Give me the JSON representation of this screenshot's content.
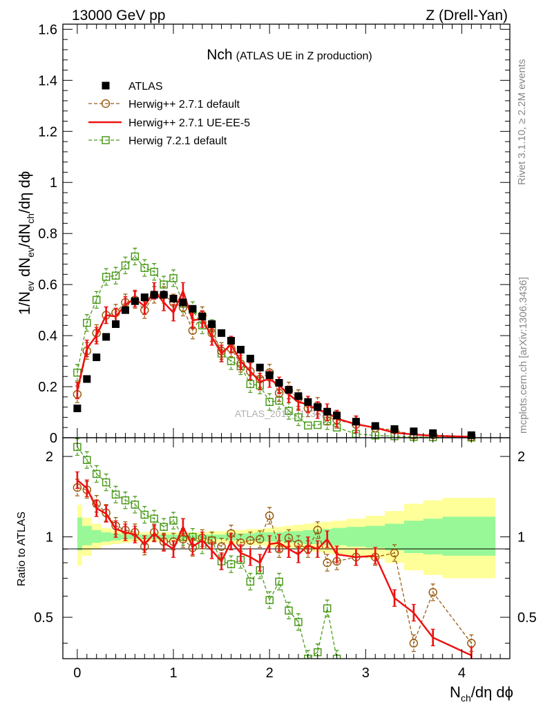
{
  "header": {
    "left": "13000 GeV pp",
    "right": "Z (Drell-Yan)"
  },
  "side_text": {
    "rivet": "Rivet 3.1.10, ≥ 2.2M events",
    "mcplots": "mcplots.cern.ch [arXiv:1306.3436]"
  },
  "chart_data": {
    "type": "scatter",
    "title_main": "Nch",
    "title_sub": "(ATLAS UE in Z production)",
    "watermark": "ATLAS_2019_I1736531",
    "xlabel_main": "N",
    "xlabel_sub": "ch",
    "xlabel_rest": "/dη dϕ",
    "ylabel_top": "1/N_ev dN_ev/dN_ch/dη dϕ",
    "ylabel_bottom": "Ratio to ATLAS",
    "xlim": [
      -0.15,
      4.5
    ],
    "ylim_top": [
      0,
      1.62
    ],
    "ylim_bottom": [
      0.35,
      2.35
    ],
    "ratio_scale": "log",
    "x_ticks": [
      "0",
      "1",
      "2",
      "3",
      "4"
    ],
    "y_ticks_top": [
      "0",
      "0.2",
      "0.4",
      "0.6",
      "0.8",
      "1",
      "1.2",
      "1.4",
      "1.6"
    ],
    "y_ticks_bottom": [
      "0.5",
      "1",
      "2"
    ],
    "legend_position": "top-left",
    "series": [
      {
        "name": "ATLAS",
        "style": "data",
        "color": "#000000",
        "x": [
          0,
          0.1,
          0.2,
          0.3,
          0.4,
          0.5,
          0.6,
          0.7,
          0.8,
          0.9,
          1.0,
          1.1,
          1.2,
          1.3,
          1.4,
          1.5,
          1.6,
          1.7,
          1.8,
          1.9,
          2.0,
          2.1,
          2.2,
          2.3,
          2.4,
          2.5,
          2.6,
          2.7,
          2.9,
          3.1,
          3.3,
          3.5,
          3.7,
          4.1
        ],
        "y": [
          0.115,
          0.23,
          0.315,
          0.395,
          0.445,
          0.5,
          0.535,
          0.55,
          0.56,
          0.56,
          0.545,
          0.53,
          0.505,
          0.475,
          0.445,
          0.41,
          0.38,
          0.345,
          0.31,
          0.275,
          0.245,
          0.215,
          0.188,
          0.163,
          0.14,
          0.12,
          0.102,
          0.087,
          0.063,
          0.046,
          0.034,
          0.025,
          0.018,
          0.01
        ]
      },
      {
        "name": "Herwig++ 2.7.1 default",
        "style": "dashed-circle",
        "color": "#9a5b10",
        "x": [
          0,
          0.1,
          0.2,
          0.3,
          0.4,
          0.5,
          0.6,
          0.7,
          0.8,
          0.9,
          1.0,
          1.1,
          1.2,
          1.3,
          1.4,
          1.5,
          1.6,
          1.7,
          1.8,
          1.9,
          2.0,
          2.1,
          2.2,
          2.3,
          2.4,
          2.5,
          2.6,
          2.7,
          2.9,
          3.1,
          3.3,
          3.5,
          3.7,
          4.1
        ],
        "y": [
          0.17,
          0.34,
          0.41,
          0.48,
          0.49,
          0.53,
          0.54,
          0.5,
          0.56,
          0.56,
          0.53,
          0.51,
          0.42,
          0.48,
          0.41,
          0.34,
          0.35,
          0.29,
          0.26,
          0.23,
          0.255,
          0.175,
          0.185,
          0.155,
          0.115,
          0.125,
          0.082,
          0.07,
          0.052,
          0.038,
          0.03,
          0.01,
          0.011,
          0.004
        ]
      },
      {
        "name": "Herwig++ 2.7.1 UE-EE-5",
        "style": "solid",
        "color": "#ee1111",
        "x": [
          0,
          0.1,
          0.2,
          0.3,
          0.4,
          0.5,
          0.6,
          0.7,
          0.8,
          0.9,
          1.0,
          1.1,
          1.2,
          1.3,
          1.4,
          1.5,
          1.6,
          1.7,
          1.8,
          1.9,
          2.0,
          2.1,
          2.2,
          2.3,
          2.4,
          2.5,
          2.6,
          2.7,
          2.9,
          3.1,
          3.3,
          3.5,
          3.7,
          4.1
        ],
        "y": [
          0.185,
          0.35,
          0.4,
          0.48,
          0.475,
          0.52,
          0.545,
          0.515,
          0.575,
          0.53,
          0.49,
          0.575,
          0.46,
          0.465,
          0.395,
          0.33,
          0.365,
          0.3,
          0.26,
          0.22,
          0.23,
          0.205,
          0.17,
          0.14,
          0.13,
          0.108,
          0.1,
          0.075,
          0.053,
          0.039,
          0.02,
          0.013,
          0.0075,
          0.0036
        ]
      },
      {
        "name": "Herwig 7.2.1 default",
        "style": "dashed-square",
        "color": "#4a9a1a",
        "x": [
          0,
          0.1,
          0.2,
          0.3,
          0.4,
          0.5,
          0.6,
          0.7,
          0.8,
          0.9,
          1.0,
          1.1,
          1.2,
          1.3,
          1.4,
          1.5,
          1.6,
          1.7,
          1.8,
          1.9,
          2.0,
          2.1,
          2.2,
          2.3,
          2.4,
          2.5,
          2.6,
          2.7,
          2.9,
          3.1,
          3.3,
          3.5,
          3.7,
          4.1
        ],
        "y": [
          0.255,
          0.45,
          0.54,
          0.63,
          0.635,
          0.675,
          0.71,
          0.665,
          0.65,
          0.6,
          0.625,
          0.525,
          0.5,
          0.44,
          0.43,
          0.33,
          0.3,
          0.28,
          0.21,
          0.205,
          0.14,
          0.145,
          0.105,
          0.08,
          0.048,
          0.05,
          0.065,
          0.04,
          0.015,
          0.009,
          0.006,
          0.003,
          0.002,
          0.0008
        ]
      }
    ],
    "ratio_series": [
      {
        "name": "Herwig++ 2.7.1 default",
        "values": [
          1.53,
          1.5,
          1.33,
          1.23,
          1.1,
          1.06,
          1.04,
          0.92,
          1.04,
          0.96,
          0.96,
          0.98,
          0.91,
          0.99,
          0.97,
          0.92,
          1.03,
          0.95,
          0.97,
          0.98,
          1.2,
          0.9,
          0.99,
          0.94,
          0.9,
          1.06,
          0.8,
          0.81,
          0.84,
          0.84,
          0.87,
          0.4,
          0.62,
          0.4
        ]
      },
      {
        "name": "Herwig++ 2.7.1 UE-EE-5",
        "values": [
          1.63,
          1.52,
          1.28,
          1.22,
          1.07,
          1.04,
          1.02,
          0.94,
          1.03,
          0.95,
          0.9,
          1.09,
          0.92,
          0.97,
          0.89,
          0.81,
          0.96,
          0.87,
          0.84,
          0.8,
          0.94,
          0.95,
          0.9,
          0.86,
          0.93,
          0.9,
          0.98,
          0.86,
          0.84,
          0.85,
          0.59,
          0.52,
          0.42,
          0.36
        ]
      },
      {
        "name": "Herwig 7.2.1 default",
        "values": [
          2.17,
          1.94,
          1.72,
          1.6,
          1.44,
          1.37,
          1.32,
          1.21,
          1.17,
          1.09,
          1.15,
          1.0,
          1.0,
          0.93,
          0.97,
          0.81,
          0.79,
          0.82,
          0.68,
          0.75,
          0.58,
          0.68,
          0.53,
          0.48,
          0.35,
          0.37,
          0.54,
          0.35
        ]
      }
    ],
    "uncertainty_bands": {
      "edges": [
        0,
        0.05,
        0.15,
        0.25,
        0.35,
        0.45,
        0.55,
        0.65,
        0.75,
        0.85,
        0.95,
        1.05,
        1.15,
        1.25,
        1.35,
        1.45,
        1.55,
        1.65,
        1.75,
        1.85,
        1.95,
        2.05,
        2.15,
        2.25,
        2.35,
        2.45,
        2.55,
        2.65,
        2.8,
        3.0,
        3.2,
        3.4,
        3.6,
        3.8,
        4.35
      ],
      "yellow_hi": [
        1.32,
        1.18,
        1.12,
        1.08,
        1.06,
        1.05,
        1.04,
        1.04,
        1.04,
        1.04,
        1.04,
        1.04,
        1.04,
        1.04,
        1.05,
        1.05,
        1.06,
        1.06,
        1.07,
        1.07,
        1.08,
        1.09,
        1.1,
        1.11,
        1.12,
        1.13,
        1.14,
        1.15,
        1.17,
        1.2,
        1.25,
        1.33,
        1.37,
        1.4
      ],
      "yellow_lo": [
        0.78,
        0.85,
        0.9,
        0.93,
        0.94,
        0.95,
        0.96,
        0.96,
        0.96,
        0.96,
        0.96,
        0.96,
        0.96,
        0.96,
        0.95,
        0.95,
        0.94,
        0.94,
        0.93,
        0.93,
        0.92,
        0.91,
        0.9,
        0.9,
        0.89,
        0.88,
        0.87,
        0.86,
        0.85,
        0.83,
        0.8,
        0.75,
        0.72,
        0.7
      ],
      "green_hi": [
        1.18,
        1.1,
        1.06,
        1.04,
        1.03,
        1.02,
        1.02,
        1.02,
        1.02,
        1.02,
        1.02,
        1.02,
        1.02,
        1.02,
        1.02,
        1.02,
        1.03,
        1.03,
        1.03,
        1.04,
        1.04,
        1.04,
        1.05,
        1.05,
        1.06,
        1.06,
        1.07,
        1.08,
        1.09,
        1.1,
        1.12,
        1.15,
        1.17,
        1.19
      ],
      "green_lo": [
        0.89,
        0.93,
        0.95,
        0.96,
        0.97,
        0.98,
        0.98,
        0.98,
        0.98,
        0.98,
        0.98,
        0.98,
        0.98,
        0.98,
        0.98,
        0.98,
        0.97,
        0.97,
        0.97,
        0.96,
        0.96,
        0.96,
        0.95,
        0.95,
        0.94,
        0.94,
        0.93,
        0.93,
        0.92,
        0.91,
        0.89,
        0.87,
        0.86,
        0.85
      ]
    },
    "colors": {
      "band_yellow": "#ffff99",
      "band_green": "#98f898"
    }
  }
}
